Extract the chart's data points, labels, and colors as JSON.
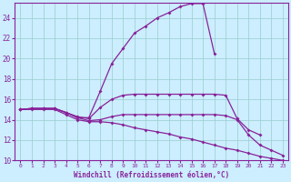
{
  "xlabel": "Windchill (Refroidissement éolien,°C)",
  "bg_color": "#cceeff",
  "line_color": "#882299",
  "grid_color": "#99cccc",
  "xlim": [
    -0.5,
    23.5
  ],
  "ylim": [
    10,
    25.5
  ],
  "yticks": [
    10,
    12,
    14,
    16,
    18,
    20,
    22,
    24
  ],
  "xticks": [
    0,
    1,
    2,
    3,
    4,
    5,
    6,
    7,
    8,
    9,
    10,
    11,
    12,
    13,
    14,
    15,
    16,
    17,
    18,
    19,
    20,
    21,
    22,
    23
  ],
  "line1_x": [
    0,
    1,
    2,
    3,
    4,
    5,
    6,
    7,
    8,
    9,
    10,
    11,
    12,
    13,
    14,
    15,
    16,
    17
  ],
  "line1_y": [
    15.0,
    15.1,
    15.1,
    15.1,
    14.7,
    14.2,
    14.2,
    16.8,
    19.5,
    21.0,
    22.5,
    23.2,
    24.0,
    24.5,
    25.1,
    25.4,
    25.4,
    20.5
  ],
  "line2_x": [
    0,
    1,
    2,
    3,
    4,
    5,
    6,
    7,
    8,
    9,
    10,
    11,
    12,
    13,
    14,
    15,
    16,
    17,
    18,
    19,
    20,
    21
  ],
  "line2_y": [
    15.0,
    15.1,
    15.1,
    15.1,
    14.7,
    14.3,
    14.1,
    15.2,
    16.0,
    16.4,
    16.5,
    16.5,
    16.5,
    16.5,
    16.5,
    16.5,
    16.5,
    16.5,
    16.4,
    14.1,
    13.0,
    12.5
  ],
  "line3_x": [
    0,
    1,
    2,
    3,
    4,
    5,
    6,
    7,
    8,
    9,
    10,
    11,
    12,
    13,
    14,
    15,
    16,
    17,
    18,
    19,
    20,
    21,
    22,
    23
  ],
  "line3_y": [
    15.0,
    15.1,
    15.1,
    15.1,
    14.7,
    14.2,
    13.9,
    14.0,
    14.3,
    14.5,
    14.5,
    14.5,
    14.5,
    14.5,
    14.5,
    14.5,
    14.5,
    14.5,
    14.4,
    14.0,
    12.5,
    11.5,
    11.0,
    10.5
  ],
  "line4_x": [
    0,
    1,
    2,
    3,
    4,
    5,
    6,
    7,
    8,
    9,
    10,
    11,
    12,
    13,
    14,
    15,
    16,
    17,
    18,
    19,
    20,
    21,
    22,
    23
  ],
  "line4_y": [
    15.0,
    15.0,
    15.0,
    15.0,
    14.5,
    14.0,
    13.8,
    13.8,
    13.7,
    13.5,
    13.2,
    13.0,
    12.8,
    12.6,
    12.3,
    12.1,
    11.8,
    11.5,
    11.2,
    11.0,
    10.7,
    10.4,
    10.2,
    10.0
  ]
}
